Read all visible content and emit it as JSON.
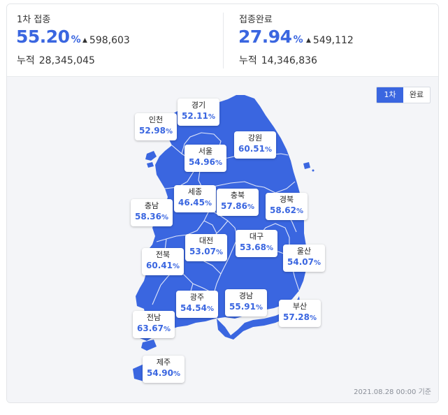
{
  "stats": {
    "first_dose": {
      "label": "1차 접종",
      "value": "55.20",
      "unit": "%",
      "delta": "598,603",
      "cumulative_label": "누적",
      "cumulative": "28,345,045"
    },
    "fully_vaccinated": {
      "label": "접종완료",
      "value": "27.94",
      "unit": "%",
      "delta": "549,112",
      "cumulative_label": "누적",
      "cumulative": "14,346,836"
    }
  },
  "toggle": {
    "first_label": "1차",
    "complete_label": "완료",
    "active": "first"
  },
  "regions": [
    {
      "name": "인천",
      "value": "52.98"
    },
    {
      "name": "경기",
      "value": "52.11"
    },
    {
      "name": "강원",
      "value": "60.51"
    },
    {
      "name": "서울",
      "value": "54.96"
    },
    {
      "name": "세종",
      "value": "46.45"
    },
    {
      "name": "충북",
      "value": "57.86"
    },
    {
      "name": "경북",
      "value": "58.62"
    },
    {
      "name": "충남",
      "value": "58.36"
    },
    {
      "name": "대전",
      "value": "53.07"
    },
    {
      "name": "대구",
      "value": "53.68"
    },
    {
      "name": "전북",
      "value": "60.41"
    },
    {
      "name": "울산",
      "value": "54.07"
    },
    {
      "name": "광주",
      "value": "54.54"
    },
    {
      "name": "경남",
      "value": "55.91"
    },
    {
      "name": "부산",
      "value": "57.28"
    },
    {
      "name": "전남",
      "value": "63.67"
    },
    {
      "name": "제주",
      "value": "54.90"
    }
  ],
  "percent_symbol": "%",
  "timestamp": "2021.08.28 00:00 기준",
  "colors": {
    "accent": "#3a66e0",
    "map_fill": "#3a66e0",
    "border_line": "#ffffff",
    "panel_bg": "#f4f5f8"
  },
  "icons": {
    "delta": "triangle-up-icon"
  }
}
